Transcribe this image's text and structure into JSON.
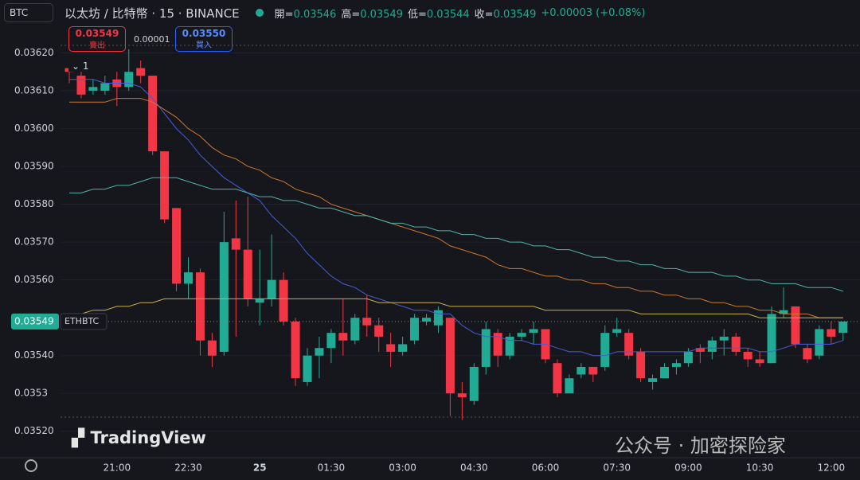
{
  "header": {
    "symbol": "BTC",
    "title": "以太坊 / 比特幣 · 15 · BINANCE",
    "ohlc": [
      {
        "label": "開=",
        "value": "0.03546"
      },
      {
        "label": "高=",
        "value": "0.03549"
      },
      {
        "label": "低=",
        "value": "0.03544"
      },
      {
        "label": "收=",
        "value": "0.03549"
      }
    ],
    "change": "+0.00003 (+0.08%)"
  },
  "trade": {
    "sell_price": "0.03549",
    "sell_label": "賣出",
    "spread": "0.00001",
    "buy_price": "0.03550",
    "buy_label": "買入"
  },
  "indicator_count": "1",
  "watermark": "TradingView",
  "credit": "公众号 · 加密探险家",
  "chart_data": {
    "type": "candlestick",
    "categories": [
      null,
      null,
      null,
      null,
      "21:00",
      null,
      null,
      null,
      null,
      null,
      "22:30",
      null,
      null,
      null,
      null,
      null,
      "25",
      null,
      null,
      null,
      null,
      null,
      "01:30",
      null,
      null,
      null,
      null,
      null,
      "03:00",
      null,
      null,
      null,
      null,
      null,
      "04:30",
      null,
      null,
      null,
      null,
      null,
      "06:00",
      null,
      null,
      null,
      null,
      null,
      "07:30",
      null,
      null,
      null,
      null,
      null,
      "09:00",
      null,
      null,
      null,
      null,
      null,
      "10:30",
      null,
      null,
      null,
      null,
      null,
      "12:00",
      null
    ],
    "open": [
      0.03616,
      0.03614,
      0.0361,
      0.0361,
      0.03613,
      0.03611,
      0.03616,
      0.03614,
      0.03594,
      0.03579,
      0.03559,
      0.03562,
      0.03544,
      0.03541,
      0.03571,
      0.03568,
      0.03554,
      0.03555,
      0.0356,
      0.03549,
      0.03533,
      0.0354,
      0.03542,
      0.03546,
      0.03544,
      0.0355,
      0.03548,
      0.03543,
      0.03541,
      0.03544,
      0.03549,
      0.03548,
      0.0355,
      0.0353,
      0.03528,
      0.03537,
      0.03546,
      0.0354,
      0.03545,
      0.03546,
      0.03547,
      0.03538,
      0.0353,
      0.03535,
      0.03537,
      0.03537,
      0.03546,
      0.03546,
      0.03541,
      0.03533,
      0.03534,
      0.03537,
      0.03538,
      0.03542,
      0.03541,
      0.03544,
      0.03545,
      0.03541,
      0.03539,
      0.03538,
      0.03551,
      0.03553,
      0.03542,
      0.0354,
      0.03547,
      0.03546
    ],
    "high": [
      0.03617,
      0.03616,
      0.03613,
      0.03614,
      0.03615,
      0.03621,
      0.03618,
      0.03614,
      0.03594,
      0.03579,
      0.03566,
      0.03563,
      0.03546,
      0.03578,
      0.03581,
      0.03582,
      0.03568,
      0.03572,
      0.03562,
      0.0355,
      0.03542,
      0.03545,
      0.03547,
      0.03555,
      0.03551,
      0.03556,
      0.0355,
      0.03546,
      0.03545,
      0.03551,
      0.03551,
      0.03553,
      0.0355,
      0.03533,
      0.03538,
      0.03549,
      0.03547,
      0.03546,
      0.03547,
      0.03549,
      0.03547,
      0.03539,
      0.03535,
      0.03538,
      0.03537,
      0.03548,
      0.0355,
      0.03547,
      0.03542,
      0.03535,
      0.03538,
      0.03539,
      0.03542,
      0.03543,
      0.03545,
      0.03547,
      0.03546,
      0.03542,
      0.03541,
      0.03553,
      0.03558,
      0.03553,
      0.03543,
      0.03548,
      0.03549,
      0.03549
    ],
    "low": [
      0.03612,
      0.03608,
      0.03609,
      0.03609,
      0.03606,
      0.0361,
      0.03612,
      0.03593,
      0.03575,
      0.03557,
      0.03555,
      0.0354,
      0.03537,
      0.0354,
      0.03545,
      0.03553,
      0.03548,
      0.03553,
      0.03548,
      0.03532,
      0.03532,
      0.03534,
      0.03538,
      0.0354,
      0.03543,
      0.03545,
      0.03541,
      0.03537,
      0.0354,
      0.03543,
      0.03548,
      0.03546,
      0.03524,
      0.03523,
      0.03527,
      0.03535,
      0.03537,
      0.03539,
      0.03544,
      0.03543,
      0.03538,
      0.03529,
      0.0353,
      0.03534,
      0.03533,
      0.03536,
      0.03545,
      0.03539,
      0.03533,
      0.03531,
      0.03534,
      0.03535,
      0.03537,
      0.03538,
      0.03539,
      0.0354,
      0.0354,
      0.03537,
      0.03537,
      0.03538,
      0.0355,
      0.03542,
      0.03538,
      0.03539,
      0.03543,
      0.03544
    ],
    "close": [
      0.03615,
      0.03609,
      0.03611,
      0.03612,
      0.03611,
      0.03615,
      0.03614,
      0.03594,
      0.03576,
      0.03559,
      0.03562,
      0.03544,
      0.0354,
      0.0357,
      0.03568,
      0.03555,
      0.03555,
      0.0356,
      0.03549,
      0.03534,
      0.0354,
      0.03542,
      0.03546,
      0.03544,
      0.0355,
      0.03548,
      0.03545,
      0.03541,
      0.03543,
      0.0355,
      0.0355,
      0.03552,
      0.0353,
      0.03529,
      0.03537,
      0.03547,
      0.0354,
      0.03545,
      0.03546,
      0.03547,
      0.03539,
      0.0353,
      0.03534,
      0.03537,
      0.03535,
      0.03546,
      0.03547,
      0.0354,
      0.03534,
      0.03534,
      0.03537,
      0.03538,
      0.03541,
      0.03541,
      0.03544,
      0.03545,
      0.03541,
      0.03539,
      0.03538,
      0.03551,
      0.03552,
      0.03543,
      0.03539,
      0.03547,
      0.03545,
      0.03549
    ],
    "up_color": "#22ab94",
    "down_color": "#f23645",
    "series": [
      {
        "color": "#4a5bd4",
        "values": [
          0.03613,
          0.03613,
          0.03613,
          0.03612,
          0.03612,
          0.03612,
          0.03611,
          0.03608,
          0.03604,
          0.036,
          0.03597,
          0.03593,
          0.0359,
          0.03587,
          0.03585,
          0.03583,
          0.03581,
          0.03577,
          0.03574,
          0.03571,
          0.03567,
          0.03564,
          0.03561,
          0.03559,
          0.03558,
          0.03556,
          0.03555,
          0.03554,
          0.03553,
          0.03552,
          0.03552,
          0.03551,
          0.03551,
          0.03548,
          0.03546,
          0.03545,
          0.03545,
          0.03544,
          0.03544,
          0.03543,
          0.03543,
          0.03542,
          0.03541,
          0.03541,
          0.0354,
          0.0354,
          0.03541,
          0.03541,
          0.03541,
          0.03541,
          0.03541,
          0.03541,
          0.03541,
          0.03542,
          0.03542,
          0.03542,
          0.03542,
          0.03542,
          0.03541,
          0.03541,
          0.03542,
          0.03543,
          0.03543,
          0.03543,
          0.03543,
          0.03544
        ]
      },
      {
        "color": "#c8782e",
        "values": [
          0.03607,
          0.03607,
          0.03607,
          0.03607,
          0.03608,
          0.03608,
          0.03608,
          0.03607,
          0.03605,
          0.03603,
          0.036,
          0.03598,
          0.03595,
          0.03593,
          0.03592,
          0.0359,
          0.03589,
          0.03587,
          0.03586,
          0.03584,
          0.03583,
          0.03582,
          0.0358,
          0.03579,
          0.03578,
          0.03577,
          0.03576,
          0.03575,
          0.03574,
          0.03573,
          0.03572,
          0.03571,
          0.03569,
          0.03568,
          0.03567,
          0.03566,
          0.03564,
          0.03563,
          0.03563,
          0.03562,
          0.03561,
          0.03561,
          0.0356,
          0.0356,
          0.03559,
          0.03559,
          0.03558,
          0.03558,
          0.03557,
          0.03557,
          0.03556,
          0.03556,
          0.03555,
          0.03555,
          0.03554,
          0.03554,
          0.03553,
          0.03553,
          0.03552,
          0.03552,
          0.03551,
          0.03551,
          0.03551,
          0.0355,
          0.0355,
          0.0355
        ]
      },
      {
        "color": "#4fb3a6",
        "values": [
          0.03583,
          0.03583,
          0.03584,
          0.03584,
          0.03585,
          0.03585,
          0.03586,
          0.03587,
          0.03587,
          0.03587,
          0.03586,
          0.03585,
          0.03584,
          0.03584,
          0.03584,
          0.03583,
          0.03582,
          0.03582,
          0.03581,
          0.03581,
          0.0358,
          0.03579,
          0.03579,
          0.03578,
          0.03577,
          0.03577,
          0.03576,
          0.03575,
          0.03575,
          0.03574,
          0.03574,
          0.03573,
          0.03573,
          0.03572,
          0.03572,
          0.03571,
          0.03571,
          0.0357,
          0.0357,
          0.03569,
          0.03569,
          0.03568,
          0.03568,
          0.03567,
          0.03566,
          0.03566,
          0.03565,
          0.03565,
          0.03564,
          0.03564,
          0.03563,
          0.03563,
          0.03562,
          0.03562,
          0.03562,
          0.03561,
          0.03561,
          0.0356,
          0.0356,
          0.03559,
          0.03559,
          0.03559,
          0.03558,
          0.03558,
          0.03558,
          0.03557
        ]
      },
      {
        "color": "#c9b24a",
        "values": [
          0.0355,
          0.03551,
          0.03552,
          0.03552,
          0.03553,
          0.03553,
          0.03554,
          0.03554,
          0.03555,
          0.03555,
          0.03555,
          0.03555,
          0.03555,
          0.03555,
          0.03555,
          0.03555,
          0.03555,
          0.03555,
          0.03555,
          0.03555,
          0.03555,
          0.03555,
          0.03555,
          0.03555,
          0.03555,
          0.03555,
          0.03554,
          0.03554,
          0.03554,
          0.03554,
          0.03554,
          0.03554,
          0.03553,
          0.03553,
          0.03553,
          0.03553,
          0.03553,
          0.03553,
          0.03553,
          0.03553,
          0.03552,
          0.03552,
          0.03552,
          0.03552,
          0.03552,
          0.03552,
          0.03552,
          0.03552,
          0.03551,
          0.03551,
          0.03551,
          0.03551,
          0.03551,
          0.03551,
          0.03551,
          0.03551,
          0.03551,
          0.03551,
          0.0355,
          0.0355,
          0.0355,
          0.0355,
          0.0355,
          0.0355,
          0.0355,
          0.0355
        ]
      }
    ],
    "ylim": [
      0.03513,
      0.03634
    ],
    "yticks": [
      {
        "value": 0.0352,
        "label": "0.03520"
      },
      0.0353,
      {
        "value": 0.0354,
        "label": "0.03540"
      },
      {
        "value": 0.0356,
        "label": "0.03560"
      },
      {
        "value": 0.0357,
        "label": "0.03570"
      },
      {
        "value": 0.0358,
        "label": "0.03580"
      },
      {
        "value": 0.0359,
        "label": "0.03590"
      },
      {
        "value": 0.036,
        "label": "0.03600"
      },
      {
        "value": 0.0361,
        "label": "0.03610"
      },
      {
        "value": 0.0362,
        "label": "0.03620"
      }
    ],
    "last_price": 0.03549,
    "last_price_symbol": "ETHBTC"
  }
}
